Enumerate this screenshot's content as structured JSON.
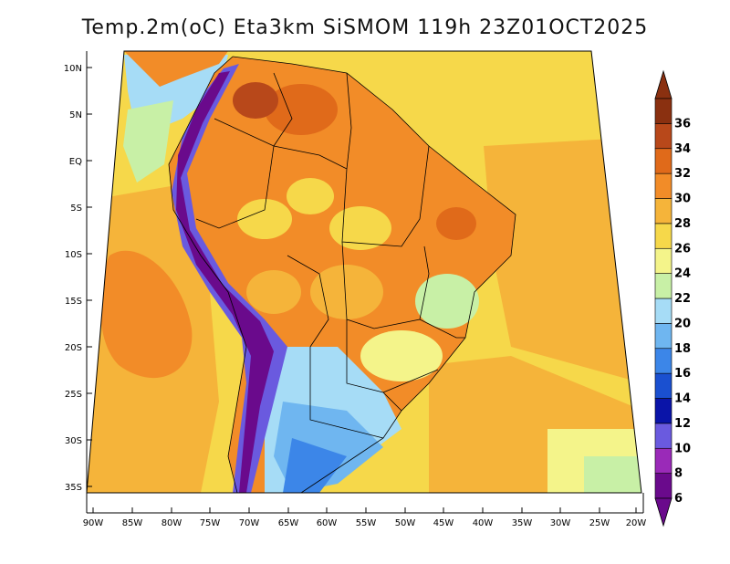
{
  "title": "Temp.2m(oC) Eta3km SiSMOM 119h 23Z01OCT2025",
  "lat_labels": [
    "10N",
    "5N",
    "EQ",
    "5S",
    "10S",
    "15S",
    "20S",
    "25S",
    "30S",
    "35S"
  ],
  "lon_labels": [
    "90W",
    "85W",
    "80W",
    "75W",
    "70W",
    "65W",
    "60W",
    "55W",
    "50W",
    "45W",
    "40W",
    "35W",
    "30W",
    "25W",
    "20W"
  ],
  "colorbar": {
    "labels": [
      "6",
      "8",
      "10",
      "12",
      "14",
      "16",
      "18",
      "20",
      "22",
      "24",
      "26",
      "28",
      "30",
      "32",
      "34",
      "36"
    ],
    "colors": [
      "#6a0a8c",
      "#9a2ab8",
      "#6a5adf",
      "#0a14a8",
      "#1a50d0",
      "#3c86e8",
      "#6fb6f0",
      "#a6dcf6",
      "#c8f0a6",
      "#f4f48a",
      "#f6d84a",
      "#f5b43a",
      "#f28c28",
      "#e06a1a",
      "#b8481a",
      "#8a3010"
    ]
  },
  "colors": {
    "ocean_warm": "#f5b43a",
    "ocean_cool": "#f6d84a",
    "land_hot": "#f28c28",
    "andes": "#6a0a8c",
    "border": "#000000"
  }
}
